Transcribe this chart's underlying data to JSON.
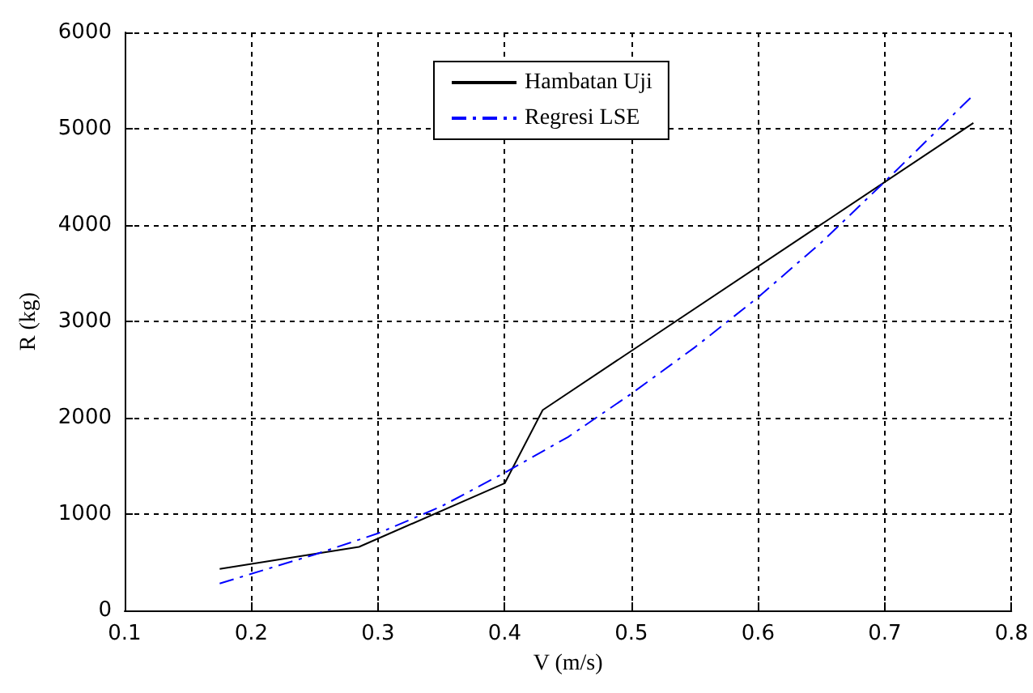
{
  "chart_data": {
    "type": "line",
    "xlabel": "V (m/s)",
    "ylabel": "R (kg)",
    "xlim": [
      0.1,
      0.8
    ],
    "xticks": [
      0.1,
      0.2,
      0.3,
      0.4,
      0.5,
      0.6,
      0.7,
      0.8
    ],
    "ylim": [
      0,
      6000
    ],
    "yticks": [
      0,
      1000,
      2000,
      3000,
      4000,
      5000,
      6000
    ],
    "grid": true,
    "legend": "top",
    "marker": "none",
    "series": [
      {
        "name": "Hambatan Uji",
        "color": "#000000",
        "line_style": "solid",
        "x": [
          0.175,
          0.285,
          0.4,
          0.43,
          0.77
        ],
        "values": [
          430,
          660,
          1320,
          2080,
          5060
        ]
      },
      {
        "name": "Regresi LSE",
        "color": "#0000ff",
        "line_style": "dashed",
        "x": [
          0.175,
          0.2,
          0.25,
          0.3,
          0.35,
          0.4,
          0.45,
          0.5,
          0.55,
          0.6,
          0.65,
          0.7,
          0.77
        ],
        "values": [
          280,
          380,
          580,
          800,
          1080,
          1430,
          1800,
          2250,
          2730,
          3250,
          3820,
          4450,
          5350
        ]
      }
    ]
  }
}
